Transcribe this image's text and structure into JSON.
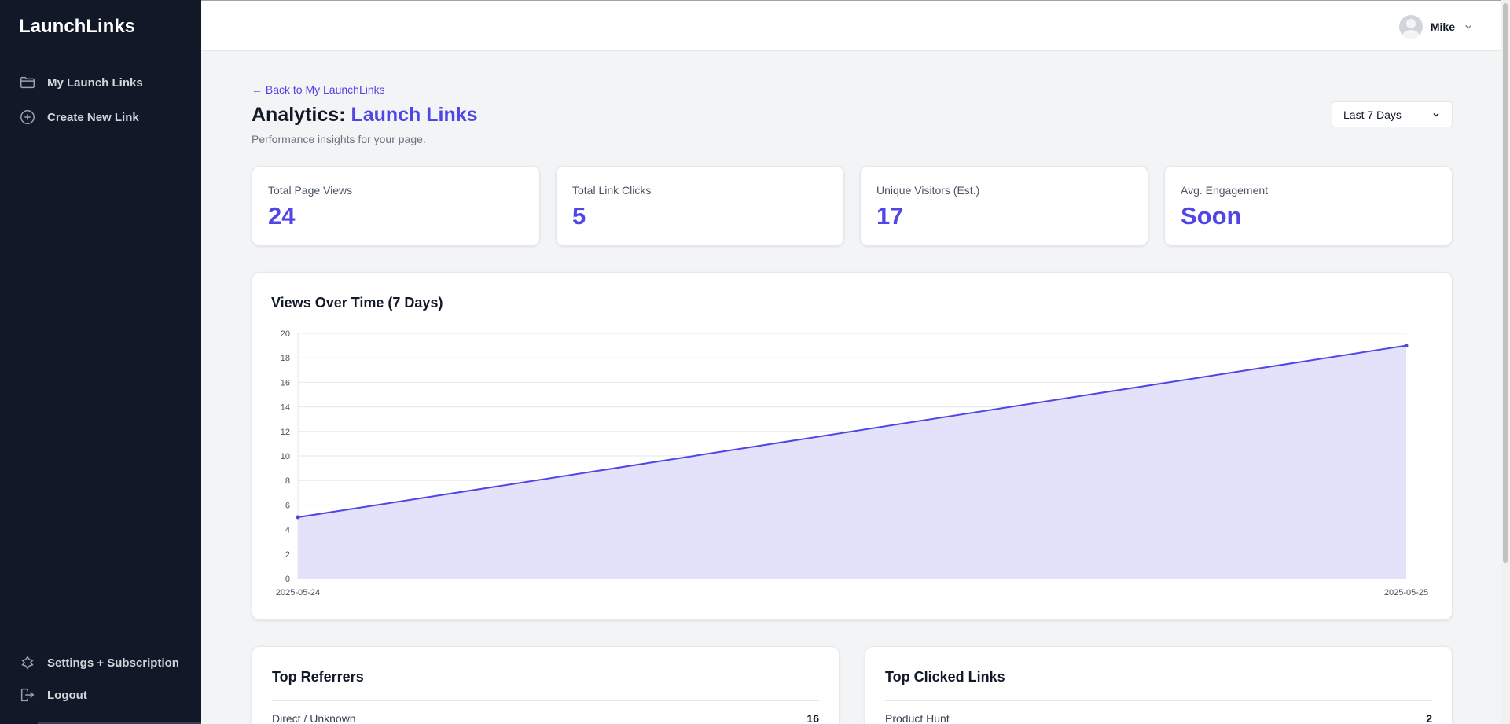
{
  "app": {
    "brand": "LaunchLinks"
  },
  "sidebar": {
    "items": [
      {
        "label": "My Launch Links",
        "icon": "folder-icon"
      },
      {
        "label": "Create New Link",
        "icon": "plus-circle-icon"
      }
    ],
    "bottom": [
      {
        "label": "Settings + Subscription",
        "icon": "settings-icon"
      },
      {
        "label": "Logout",
        "icon": "logout-icon"
      }
    ]
  },
  "header": {
    "user_name": "Mike"
  },
  "page": {
    "back_label": "← Back to My LaunchLinks",
    "title_prefix": "Analytics: ",
    "title_accent": "Launch Links",
    "subtitle": "Performance insights for your page.",
    "range_label": "Last 7 Days"
  },
  "stats": [
    {
      "label": "Total Page Views",
      "value": "24"
    },
    {
      "label": "Total Link Clicks",
      "value": "5"
    },
    {
      "label": "Unique Visitors (Est.)",
      "value": "17"
    },
    {
      "label": "Avg. Engagement",
      "value": "Soon"
    }
  ],
  "chart_data": {
    "type": "area",
    "title": "Views Over Time (7 Days)",
    "x": [
      "2025-05-24",
      "2025-05-25"
    ],
    "values": [
      5,
      19
    ],
    "ylim": [
      0,
      20
    ],
    "yticks": [
      0,
      2,
      4,
      6,
      8,
      10,
      12,
      14,
      16,
      18,
      20
    ],
    "grid": true,
    "line_color": "#4f46e5",
    "fill_color": "#e4e2fb"
  },
  "referrers": {
    "title": "Top Referrers",
    "rows": [
      {
        "label": "Direct / Unknown",
        "value": "16"
      }
    ]
  },
  "top_links": {
    "title": "Top Clicked Links",
    "rows": [
      {
        "label": "Product Hunt",
        "value": "2"
      }
    ]
  },
  "colors": {
    "accent": "#4f46e5",
    "sidebar_bg": "#111827"
  }
}
